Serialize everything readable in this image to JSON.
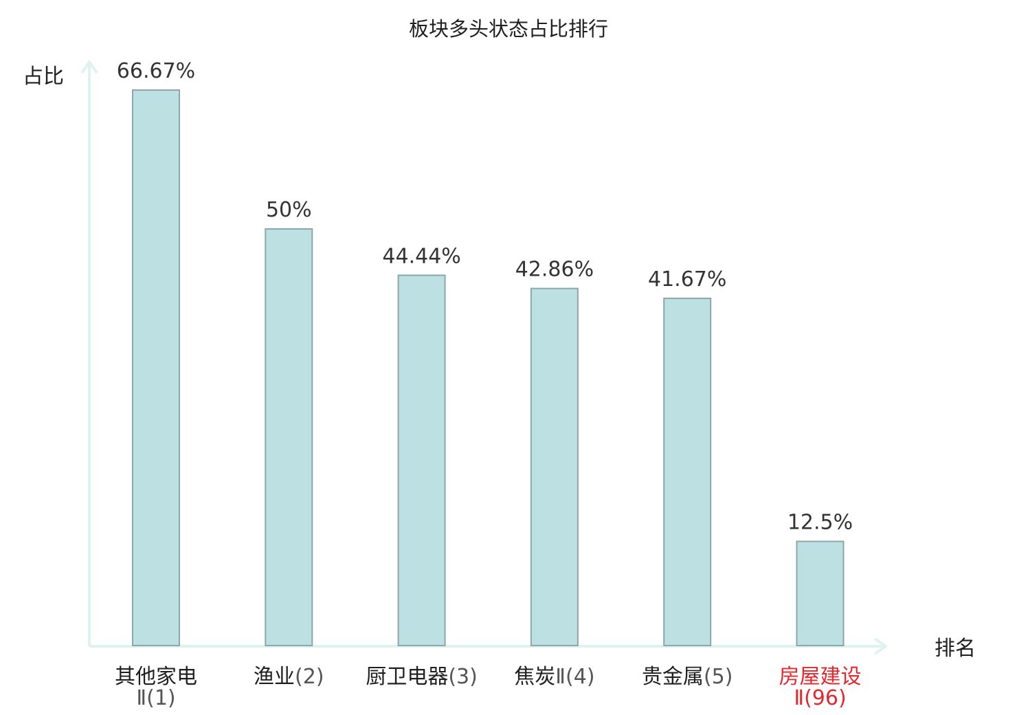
{
  "chart_data": {
    "type": "bar",
    "title": "板块多头状态占比排行",
    "xlabel": "排名",
    "ylabel": "占比",
    "categories": [
      {
        "name": "其他家电",
        "rank": "Ⅱ(1)",
        "highlight": false
      },
      {
        "name": "渔业",
        "rank": "(2)",
        "highlight": false
      },
      {
        "name": "厨卫电器",
        "rank": "(3)",
        "highlight": false
      },
      {
        "name": "焦炭",
        "rank": "Ⅱ(4)",
        "highlight": false
      },
      {
        "name": "贵金属",
        "rank": "(5)",
        "highlight": false
      },
      {
        "name": "房屋建设",
        "rank": "Ⅱ(96)",
        "highlight": true
      }
    ],
    "values": [
      66.67,
      50,
      44.44,
      42.86,
      41.67,
      12.5
    ],
    "value_labels": [
      "66.67%",
      "50%",
      "44.44%",
      "42.86%",
      "41.67%",
      "12.5%"
    ],
    "ylim": [
      0,
      66.67
    ],
    "grid": false,
    "legend": "none",
    "colors": {
      "bar_fill": "#bde0e3",
      "bar_stroke": "#8aa8ab",
      "axis": "#e0f2ef",
      "highlight_text": "#e8262b",
      "normal_cat_name": "#1f1f1f",
      "normal_cat_rank": "#555555"
    }
  }
}
